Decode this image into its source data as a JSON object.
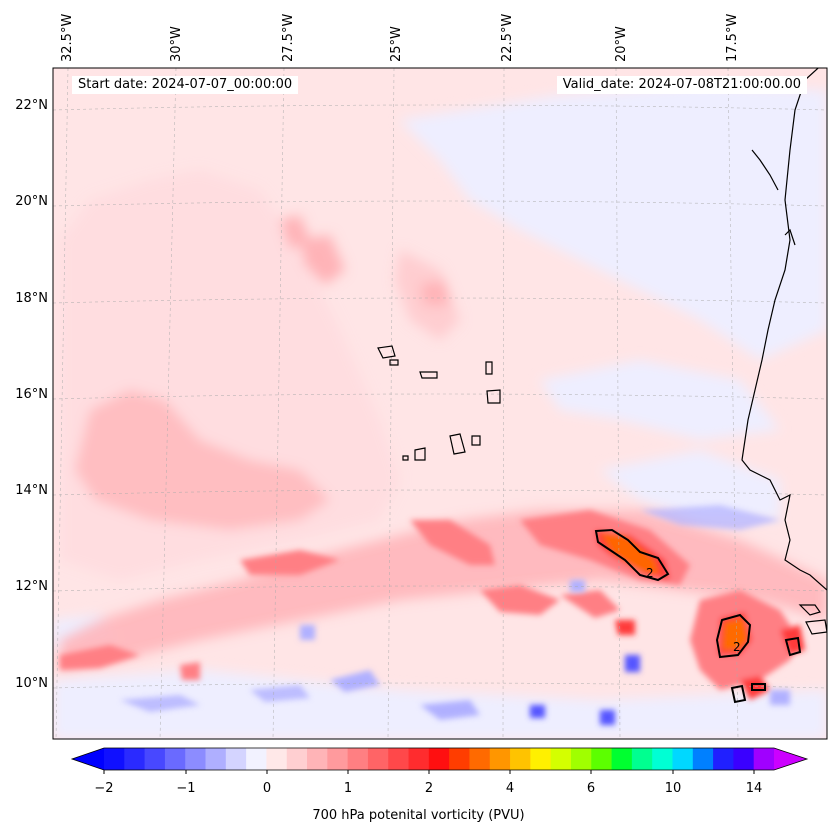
{
  "map": {
    "lon_labels": [
      "32.5°W",
      "30°W",
      "27.5°W",
      "25°W",
      "22.5°W",
      "20°W",
      "17.5°W"
    ],
    "lat_labels": [
      "22°N",
      "20°N",
      "18°N",
      "16°N",
      "14°N",
      "12°N",
      "10°N"
    ],
    "start_date": "Start date: 2024-07-07_00:00:00",
    "valid_date": "Valid_date: 2024-07-08T21:00:00.00",
    "contour_label": "2",
    "field_colors": {
      "very_light_red": "#ffe5e6",
      "light_red": "#ffb3b7",
      "mid_red": "#ff7f84",
      "strong_red": "#ff3b3b",
      "orange": "#ff6a00",
      "light_blue": "#eeeeff",
      "blue": "#b0b0ff",
      "deep_blue": "#5555ff",
      "land_line": "#000000"
    }
  },
  "colorbar": {
    "tick_labels": [
      "−2",
      "−1",
      "0",
      "1",
      "2",
      "4",
      "6",
      "10",
      "14"
    ],
    "title": "700 hPa potenital vorticity (PVU)",
    "colors": [
      "#1010ff",
      "#2a2aff",
      "#4848ff",
      "#6a6aff",
      "#8c8cff",
      "#afafff",
      "#d4d4ff",
      "#f2f2ff",
      "#ffe8e8",
      "#ffcfd1",
      "#ffb4b7",
      "#ff9a9d",
      "#ff7f82",
      "#ff6466",
      "#ff484a",
      "#ff2c2e",
      "#ff0f10",
      "#ff3d00",
      "#ff6a00",
      "#ff9600",
      "#ffc300",
      "#fff000",
      "#d4ff00",
      "#a0ff00",
      "#5cff00",
      "#00ff30",
      "#00ff90",
      "#00ffd4",
      "#00d8ff",
      "#0080ff",
      "#2020ff",
      "#3a00ff",
      "#a000ff"
    ],
    "under_color": "#0000ff",
    "over_color": "#cc00ff"
  }
}
